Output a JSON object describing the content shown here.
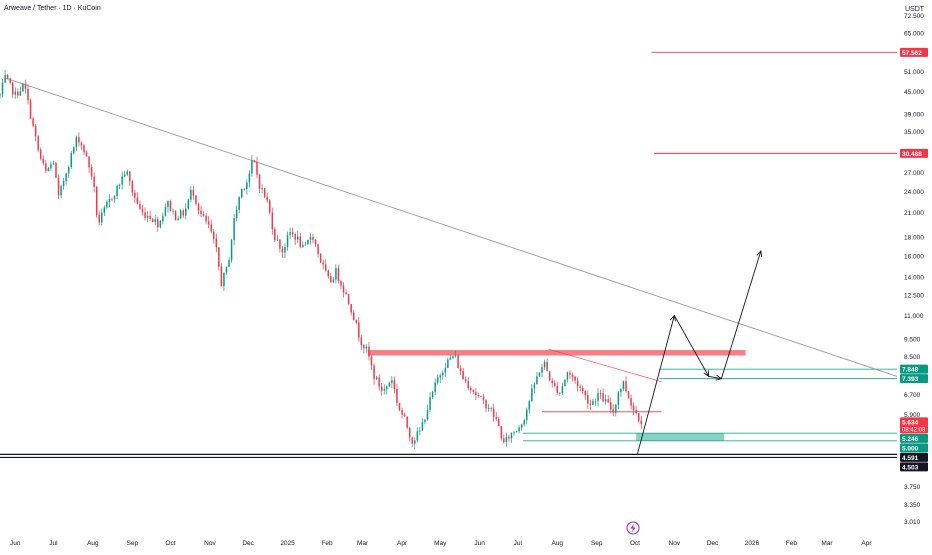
{
  "header": {
    "title": "Arweave / Tether · 1D · KuCoin",
    "currency": "USDT"
  },
  "event_icon": "lightning-bolt-icon",
  "chart_data": {
    "type": "candlestick",
    "title": "Arweave / Tether · 1D · KuCoin",
    "y_scale": "log",
    "ylim": [
      2.8,
      80
    ],
    "y_ticks": [
      {
        "v": 72.5,
        "label": "72.500"
      },
      {
        "v": 65.0,
        "label": "65.000"
      },
      {
        "v": 51.0,
        "label": "51.000"
      },
      {
        "v": 45.0,
        "label": "45.000"
      },
      {
        "v": 39.0,
        "label": "39.000"
      },
      {
        "v": 35.0,
        "label": "35.000"
      },
      {
        "v": 27.0,
        "label": "27.000"
      },
      {
        "v": 24.0,
        "label": "24.000"
      },
      {
        "v": 21.0,
        "label": "21.000"
      },
      {
        "v": 18.0,
        "label": "18.000"
      },
      {
        "v": 16.0,
        "label": "16.000"
      },
      {
        "v": 14.0,
        "label": "14.000"
      },
      {
        "v": 12.5,
        "label": "12.500"
      },
      {
        "v": 11.0,
        "label": "11.000"
      },
      {
        "v": 9.5,
        "label": "9.500"
      },
      {
        "v": 8.5,
        "label": "8.500"
      },
      {
        "v": 6.7,
        "label": "6.700"
      },
      {
        "v": 5.9,
        "label": "5.900"
      },
      {
        "v": 3.75,
        "label": "3.750"
      },
      {
        "v": 3.35,
        "label": "3.350"
      },
      {
        "v": 3.01,
        "label": "3.010"
      }
    ],
    "x_ticks": [
      {
        "date": "2024-06-01",
        "label": "Jun"
      },
      {
        "date": "2024-07-01",
        "label": "Jul"
      },
      {
        "date": "2024-08-01",
        "label": "Aug"
      },
      {
        "date": "2024-09-01",
        "label": "Sep"
      },
      {
        "date": "2024-10-01",
        "label": "Oct"
      },
      {
        "date": "2024-11-01",
        "label": "Nov"
      },
      {
        "date": "2024-12-01",
        "label": "Dec"
      },
      {
        "date": "2025-01-01",
        "label": "2025"
      },
      {
        "date": "2025-02-01",
        "label": "Feb"
      },
      {
        "date": "2025-03-01",
        "label": "Mar"
      },
      {
        "date": "2025-04-01",
        "label": "Apr"
      },
      {
        "date": "2025-05-01",
        "label": "May"
      },
      {
        "date": "2025-06-01",
        "label": "Jun"
      },
      {
        "date": "2025-07-01",
        "label": "Jul"
      },
      {
        "date": "2025-08-01",
        "label": "Aug"
      },
      {
        "date": "2025-09-01",
        "label": "Sep"
      },
      {
        "date": "2025-10-01",
        "label": "Oct"
      },
      {
        "date": "2025-11-01",
        "label": "Nov"
      },
      {
        "date": "2025-12-01",
        "label": "Dec"
      },
      {
        "date": "2026-01-01",
        "label": "2026"
      },
      {
        "date": "2026-02-01",
        "label": "Feb"
      },
      {
        "date": "2026-03-01",
        "label": "Mar"
      },
      {
        "date": "2026-04-01",
        "label": "Apr"
      }
    ],
    "x_range": [
      "2024-05-20",
      "2026-04-25"
    ],
    "price_path": [
      [
        "2024-05-20",
        44
      ],
      [
        "2024-05-24",
        49
      ],
      [
        "2024-06-01",
        44
      ],
      [
        "2024-06-08",
        47
      ],
      [
        "2024-06-15",
        36
      ],
      [
        "2024-06-20",
        30
      ],
      [
        "2024-06-25",
        27
      ],
      [
        "2024-07-01",
        29
      ],
      [
        "2024-07-05",
        23
      ],
      [
        "2024-07-12",
        28
      ],
      [
        "2024-07-20",
        34
      ],
      [
        "2024-07-25",
        31
      ],
      [
        "2024-08-01",
        26
      ],
      [
        "2024-08-05",
        19.5
      ],
      [
        "2024-08-12",
        22
      ],
      [
        "2024-08-20",
        24.5
      ],
      [
        "2024-08-27",
        27.5
      ],
      [
        "2024-09-01",
        24
      ],
      [
        "2024-09-08",
        21
      ],
      [
        "2024-09-15",
        20.5
      ],
      [
        "2024-09-22",
        19.5
      ],
      [
        "2024-09-28",
        22.5
      ],
      [
        "2024-10-05",
        20.5
      ],
      [
        "2024-10-12",
        21
      ],
      [
        "2024-10-18",
        24.5
      ],
      [
        "2024-10-24",
        21
      ],
      [
        "2024-11-01",
        19
      ],
      [
        "2024-11-06",
        16.5
      ],
      [
        "2024-11-10",
        13.5
      ],
      [
        "2024-11-15",
        15
      ],
      [
        "2024-11-20",
        20
      ],
      [
        "2024-11-25",
        24
      ],
      [
        "2024-12-01",
        26
      ],
      [
        "2024-12-05",
        29.5
      ],
      [
        "2024-12-10",
        25
      ],
      [
        "2024-12-16",
        22.5
      ],
      [
        "2024-12-22",
        18
      ],
      [
        "2024-12-28",
        16.5
      ],
      [
        "2025-01-03",
        18.5
      ],
      [
        "2025-01-08",
        18
      ],
      [
        "2025-01-14",
        16.5
      ],
      [
        "2025-01-20",
        18.5
      ],
      [
        "2025-01-27",
        15.5
      ],
      [
        "2025-02-03",
        13.5
      ],
      [
        "2025-02-08",
        14.5
      ],
      [
        "2025-02-14",
        13
      ],
      [
        "2025-02-20",
        11.5
      ],
      [
        "2025-02-27",
        9.5
      ],
      [
        "2025-03-05",
        8.7
      ],
      [
        "2025-03-10",
        7.5
      ],
      [
        "2025-03-17",
        6.8
      ],
      [
        "2025-03-24",
        7.4
      ],
      [
        "2025-03-29",
        6.2
      ],
      [
        "2025-04-03",
        5.7
      ],
      [
        "2025-04-09",
        5.0
      ],
      [
        "2025-04-15",
        5.3
      ],
      [
        "2025-04-22",
        6.3
      ],
      [
        "2025-04-29",
        7.4
      ],
      [
        "2025-05-05",
        8.1
      ],
      [
        "2025-05-12",
        8.6
      ],
      [
        "2025-05-18",
        7.5
      ],
      [
        "2025-05-25",
        7.0
      ],
      [
        "2025-06-01",
        6.5
      ],
      [
        "2025-06-08",
        6.2
      ],
      [
        "2025-06-15",
        5.6
      ],
      [
        "2025-06-20",
        4.9
      ],
      [
        "2025-06-25",
        5.2
      ],
      [
        "2025-07-01",
        5.4
      ],
      [
        "2025-07-06",
        5.8
      ],
      [
        "2025-07-12",
        6.8
      ],
      [
        "2025-07-18",
        7.8
      ],
      [
        "2025-07-22",
        8.1
      ],
      [
        "2025-07-28",
        7.1
      ],
      [
        "2025-08-03",
        6.8
      ],
      [
        "2025-08-09",
        7.7
      ],
      [
        "2025-08-15",
        7.3
      ],
      [
        "2025-08-21",
        6.8
      ],
      [
        "2025-08-27",
        6.3
      ],
      [
        "2025-09-02",
        6.7
      ],
      [
        "2025-09-08",
        6.4
      ],
      [
        "2025-09-14",
        6.0
      ],
      [
        "2025-09-18",
        6.8
      ],
      [
        "2025-09-22",
        7.2
      ],
      [
        "2025-09-26",
        6.6
      ],
      [
        "2025-09-30",
        6.1
      ],
      [
        "2025-10-04",
        5.8
      ],
      [
        "2025-10-07",
        5.634
      ]
    ],
    "trendline": {
      "from": [
        "2024-05-24",
        49
      ],
      "to": [
        "2026-04-25",
        7.5
      ]
    },
    "minor_trendline": {
      "from": [
        "2025-07-25",
        8.9
      ],
      "to": [
        "2025-10-22",
        7.25
      ]
    },
    "resistance_zone": {
      "from": "2025-03-05",
      "to": "2025-12-27",
      "top": 8.85,
      "bottom": 8.55
    },
    "level_lines": [
      {
        "from": "2025-07-20",
        "to": "2025-10-22",
        "value": 6.0,
        "color": "#f23645"
      },
      {
        "from": "2025-10-20",
        "to": "2026-04-25",
        "value": 7.848,
        "color": "#22ab94"
      },
      {
        "from": "2025-10-20",
        "to": "2026-04-25",
        "value": 7.393,
        "color": "#22ab94"
      },
      {
        "from": "2025-07-05",
        "to": "2026-04-25",
        "value": 5.246,
        "color": "#22ab94"
      },
      {
        "from": "2025-07-05",
        "to": "2026-04-25",
        "value": 5.0,
        "color": "#22ab94"
      },
      {
        "from": "2024-05-20",
        "to": "2026-04-25",
        "value": 4.591,
        "color": "#131722"
      },
      {
        "from": "2024-05-20",
        "to": "2026-04-25",
        "value": 4.503,
        "color": "#131722"
      },
      {
        "from": "2025-10-14",
        "to": "2026-04-25",
        "value": 57.562,
        "color": "#f23645"
      },
      {
        "from": "2025-10-16",
        "to": "2026-04-25",
        "value": 30.488,
        "color": "#f23645"
      }
    ],
    "support_box": {
      "from": "2025-10-02",
      "to": "2025-12-10",
      "top": 5.246,
      "bottom": 5.0
    },
    "projection_path": [
      [
        "2025-10-03",
        4.6
      ],
      [
        "2025-11-01",
        11.0
      ],
      [
        "2025-11-28",
        7.5
      ],
      [
        "2025-12-08",
        7.393
      ],
      [
        "2026-01-08",
        16.5
      ]
    ],
    "price_labels": [
      {
        "value": 57.562,
        "label": "57.562",
        "bg": "#f23645",
        "fg": "#ffffff"
      },
      {
        "value": 30.488,
        "label": "30.488",
        "bg": "#f23645",
        "fg": "#ffffff"
      },
      {
        "value": 7.848,
        "label": "7.848",
        "bg": "#089981",
        "fg": "#ffffff"
      },
      {
        "value": 7.393,
        "label": "7.393",
        "bg": "#089981",
        "fg": "#ffffff"
      },
      {
        "value": 5.634,
        "label": "5.634",
        "sublabel": "08:42:08",
        "bg": "#f23645",
        "fg": "#ffffff"
      },
      {
        "value": 5.246,
        "label": "5.246",
        "bg": "#089981",
        "fg": "#ffffff"
      },
      {
        "value": 5.0,
        "label": "5.000",
        "bg": "#089981",
        "fg": "#ffffff"
      },
      {
        "value": 4.591,
        "label": "4.591",
        "bg": "#131722",
        "fg": "#ffffff"
      },
      {
        "value": 4.503,
        "label": "4.503",
        "bg": "#131722",
        "fg": "#ffffff"
      }
    ],
    "colors": {
      "up": "#089981",
      "down": "#f23645",
      "trendline": "#9598a1",
      "zone": "#f7525f",
      "support": "#22ab94",
      "axis_text": "#131722"
    }
  }
}
